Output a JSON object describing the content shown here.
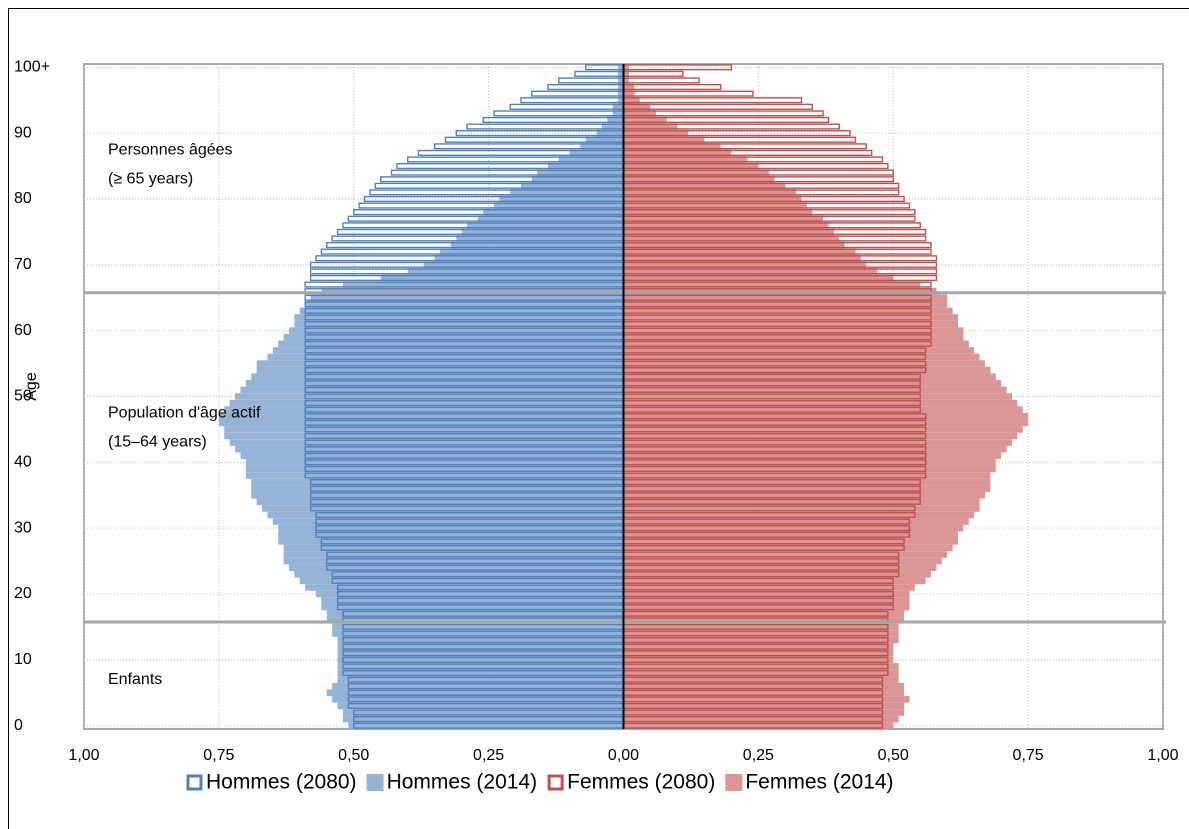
{
  "chart_data": {
    "type": "pyramid",
    "y_label": "Age",
    "ages": [
      0,
      1,
      2,
      3,
      4,
      5,
      6,
      7,
      8,
      9,
      10,
      11,
      12,
      13,
      14,
      15,
      16,
      17,
      18,
      19,
      20,
      21,
      22,
      23,
      24,
      25,
      26,
      27,
      28,
      29,
      30,
      31,
      32,
      33,
      34,
      35,
      36,
      37,
      38,
      39,
      40,
      41,
      42,
      43,
      44,
      45,
      46,
      47,
      48,
      49,
      50,
      51,
      52,
      53,
      54,
      55,
      56,
      57,
      58,
      59,
      60,
      61,
      62,
      63,
      64,
      65,
      66,
      67,
      68,
      69,
      70,
      71,
      72,
      73,
      74,
      75,
      76,
      77,
      78,
      79,
      80,
      81,
      82,
      83,
      84,
      85,
      86,
      87,
      88,
      89,
      90,
      91,
      92,
      93,
      94,
      95,
      96,
      97,
      98,
      99,
      100
    ],
    "xlim": [
      -1,
      1
    ],
    "xticks": [
      {
        "value": -1,
        "label": "1,00"
      },
      {
        "value": -0.75,
        "label": "0,75"
      },
      {
        "value": -0.5,
        "label": "0,50"
      },
      {
        "value": -0.25,
        "label": "0,25"
      },
      {
        "value": 0,
        "label": "0,00"
      },
      {
        "value": 0.25,
        "label": "0,25"
      },
      {
        "value": 0.5,
        "label": "0,50"
      },
      {
        "value": 0.75,
        "label": "0,75"
      },
      {
        "value": 1,
        "label": "1,00"
      }
    ],
    "ylim": [
      -0.5,
      100.5
    ],
    "yticks": [
      0,
      10,
      20,
      30,
      40,
      50,
      60,
      70,
      80,
      90,
      {
        "value": 100,
        "label": "100+"
      }
    ],
    "grid": true,
    "legend": "bottom",
    "reference_lines": [
      15.75,
      65.75
    ],
    "annotations": [
      {
        "lines": [
          "Personnes âgées",
          "(≥ 65 years)"
        ],
        "age": 85
      },
      {
        "lines": [
          "Population d'âge actif",
          "(15–64 years)"
        ],
        "age": 45
      },
      {
        "lines": [
          "Enfants"
        ],
        "age": 7
      }
    ],
    "series": [
      {
        "name": "Hommes (2080)",
        "color": "#4f81bd",
        "style": "outline",
        "values": [
          -0.5,
          -0.5,
          -0.5,
          -0.51,
          -0.51,
          -0.51,
          -0.51,
          -0.51,
          -0.52,
          -0.52,
          -0.52,
          -0.52,
          -0.52,
          -0.52,
          -0.52,
          -0.52,
          -0.52,
          -0.52,
          -0.53,
          -0.53,
          -0.53,
          -0.53,
          -0.54,
          -0.54,
          -0.55,
          -0.55,
          -0.55,
          -0.56,
          -0.56,
          -0.57,
          -0.57,
          -0.57,
          -0.57,
          -0.58,
          -0.58,
          -0.58,
          -0.58,
          -0.58,
          -0.59,
          -0.59,
          -0.59,
          -0.59,
          -0.59,
          -0.59,
          -0.59,
          -0.59,
          -0.59,
          -0.59,
          -0.59,
          -0.59,
          -0.59,
          -0.59,
          -0.59,
          -0.59,
          -0.59,
          -0.59,
          -0.59,
          -0.59,
          -0.59,
          -0.59,
          -0.59,
          -0.59,
          -0.59,
          -0.59,
          -0.59,
          -0.59,
          -0.59,
          -0.59,
          -0.58,
          -0.58,
          -0.58,
          -0.57,
          -0.56,
          -0.55,
          -0.54,
          -0.53,
          -0.52,
          -0.51,
          -0.5,
          -0.49,
          -0.48,
          -0.47,
          -0.46,
          -0.45,
          -0.43,
          -0.42,
          -0.4,
          -0.38,
          -0.35,
          -0.33,
          -0.31,
          -0.29,
          -0.26,
          -0.24,
          -0.21,
          -0.19,
          -0.17,
          -0.14,
          -0.12,
          -0.09,
          -0.07
        ]
      },
      {
        "name": "Hommes (2014)",
        "color": "#95b3d7",
        "style": "fill",
        "values": [
          -0.51,
          -0.52,
          -0.52,
          -0.53,
          -0.54,
          -0.55,
          -0.54,
          -0.53,
          -0.53,
          -0.53,
          -0.53,
          -0.53,
          -0.53,
          -0.53,
          -0.54,
          -0.54,
          -0.55,
          -0.55,
          -0.56,
          -0.56,
          -0.57,
          -0.59,
          -0.6,
          -0.61,
          -0.62,
          -0.63,
          -0.63,
          -0.63,
          -0.64,
          -0.64,
          -0.64,
          -0.65,
          -0.66,
          -0.67,
          -0.68,
          -0.69,
          -0.69,
          -0.69,
          -0.7,
          -0.7,
          -0.7,
          -0.71,
          -0.72,
          -0.73,
          -0.74,
          -0.74,
          -0.75,
          -0.75,
          -0.74,
          -0.73,
          -0.72,
          -0.71,
          -0.7,
          -0.69,
          -0.68,
          -0.68,
          -0.66,
          -0.65,
          -0.64,
          -0.63,
          -0.62,
          -0.61,
          -0.61,
          -0.6,
          -0.59,
          -0.58,
          -0.56,
          -0.52,
          -0.45,
          -0.4,
          -0.37,
          -0.35,
          -0.34,
          -0.32,
          -0.31,
          -0.3,
          -0.29,
          -0.27,
          -0.26,
          -0.24,
          -0.23,
          -0.21,
          -0.19,
          -0.17,
          -0.16,
          -0.14,
          -0.12,
          -0.1,
          -0.08,
          -0.07,
          -0.05,
          -0.04,
          -0.03,
          -0.02,
          -0.02,
          -0.01,
          -0.01,
          -0.01,
          -0.01,
          -0.01,
          -0.01
        ]
      },
      {
        "name": "Femmes (2080)",
        "color": "#c0504d",
        "style": "outline",
        "values": [
          0.48,
          0.48,
          0.48,
          0.48,
          0.48,
          0.48,
          0.48,
          0.48,
          0.49,
          0.49,
          0.49,
          0.49,
          0.49,
          0.49,
          0.49,
          0.49,
          0.49,
          0.49,
          0.5,
          0.5,
          0.5,
          0.5,
          0.5,
          0.51,
          0.51,
          0.51,
          0.51,
          0.52,
          0.52,
          0.53,
          0.53,
          0.53,
          0.54,
          0.54,
          0.55,
          0.55,
          0.55,
          0.55,
          0.56,
          0.56,
          0.56,
          0.56,
          0.56,
          0.56,
          0.56,
          0.56,
          0.56,
          0.56,
          0.55,
          0.55,
          0.55,
          0.55,
          0.55,
          0.55,
          0.56,
          0.56,
          0.56,
          0.56,
          0.57,
          0.57,
          0.57,
          0.57,
          0.57,
          0.57,
          0.57,
          0.57,
          0.57,
          0.57,
          0.58,
          0.58,
          0.58,
          0.58,
          0.57,
          0.57,
          0.56,
          0.56,
          0.55,
          0.54,
          0.54,
          0.53,
          0.52,
          0.51,
          0.51,
          0.5,
          0.5,
          0.49,
          0.48,
          0.46,
          0.45,
          0.43,
          0.42,
          0.4,
          0.38,
          0.37,
          0.35,
          0.33,
          0.24,
          0.18,
          0.14,
          0.11,
          0.2
        ]
      },
      {
        "name": "Femmes (2014)",
        "color": "#d99694",
        "style": "fill",
        "values": [
          0.5,
          0.51,
          0.52,
          0.52,
          0.53,
          0.52,
          0.52,
          0.51,
          0.51,
          0.51,
          0.5,
          0.5,
          0.5,
          0.51,
          0.51,
          0.51,
          0.52,
          0.52,
          0.53,
          0.53,
          0.53,
          0.54,
          0.56,
          0.57,
          0.58,
          0.59,
          0.6,
          0.61,
          0.62,
          0.62,
          0.63,
          0.64,
          0.65,
          0.66,
          0.66,
          0.67,
          0.68,
          0.68,
          0.68,
          0.69,
          0.69,
          0.7,
          0.71,
          0.72,
          0.73,
          0.74,
          0.75,
          0.75,
          0.74,
          0.73,
          0.72,
          0.71,
          0.7,
          0.69,
          0.68,
          0.67,
          0.66,
          0.65,
          0.64,
          0.63,
          0.63,
          0.62,
          0.62,
          0.61,
          0.6,
          0.6,
          0.58,
          0.55,
          0.5,
          0.47,
          0.45,
          0.44,
          0.43,
          0.41,
          0.4,
          0.39,
          0.38,
          0.37,
          0.35,
          0.34,
          0.33,
          0.32,
          0.3,
          0.28,
          0.27,
          0.25,
          0.23,
          0.2,
          0.18,
          0.15,
          0.12,
          0.1,
          0.08,
          0.06,
          0.05,
          0.03,
          0.02,
          0.02,
          0.01,
          0.01,
          0.01
        ]
      }
    ]
  }
}
